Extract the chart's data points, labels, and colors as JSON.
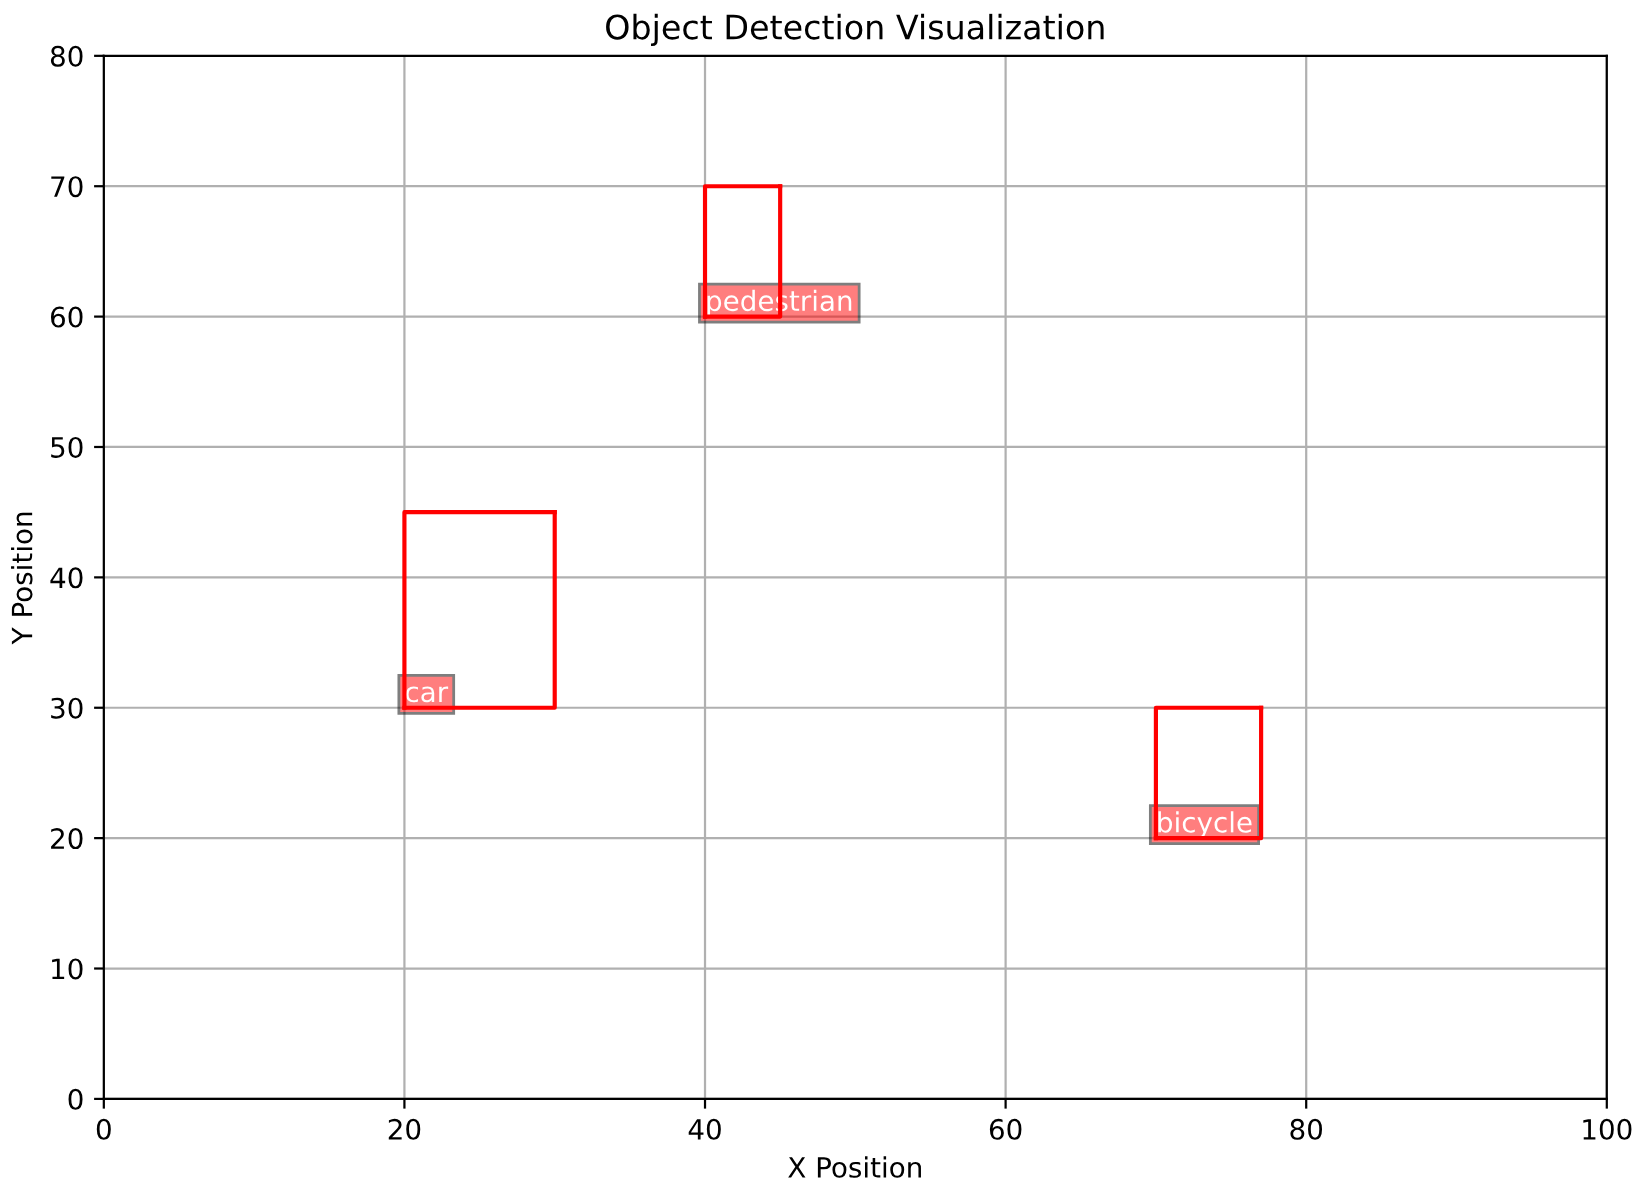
{
  "chart_data": {
    "type": "line",
    "title": "Object Detection Visualization",
    "xlabel": "X Position",
    "ylabel": "Y Position",
    "xlim": [
      0,
      100
    ],
    "ylim": [
      0,
      80
    ],
    "xticks": [
      0,
      20,
      40,
      60,
      80,
      100
    ],
    "yticks": [
      0,
      10,
      20,
      30,
      40,
      50,
      60,
      70,
      80
    ],
    "grid": true,
    "marker": "none",
    "line_style": "solid",
    "series": [
      {
        "color": "#ff0000",
        "x": [
          20,
          30,
          30
        ],
        "values": [
          30,
          30,
          45
        ]
      },
      {
        "color": "#ff0000",
        "x": [
          20,
          20,
          30
        ],
        "values": [
          30,
          45,
          45
        ]
      },
      {
        "color": "#ff0000",
        "x": [
          40,
          45,
          45
        ],
        "values": [
          60,
          60,
          70
        ]
      },
      {
        "color": "#ff0000",
        "x": [
          40,
          40,
          45
        ],
        "values": [
          60,
          70,
          70
        ]
      },
      {
        "color": "#ff0000",
        "x": [
          70,
          77,
          77
        ],
        "values": [
          20,
          20,
          30
        ]
      },
      {
        "color": "#ff0000",
        "x": [
          70,
          70,
          77
        ],
        "values": [
          20,
          30,
          30
        ]
      }
    ],
    "annotations": [
      {
        "text": "car",
        "x": 20,
        "y": 30
      },
      {
        "text": "pedestrian",
        "x": 40,
        "y": 60
      },
      {
        "text": "bicycle",
        "x": 70,
        "y": 20
      }
    ]
  }
}
